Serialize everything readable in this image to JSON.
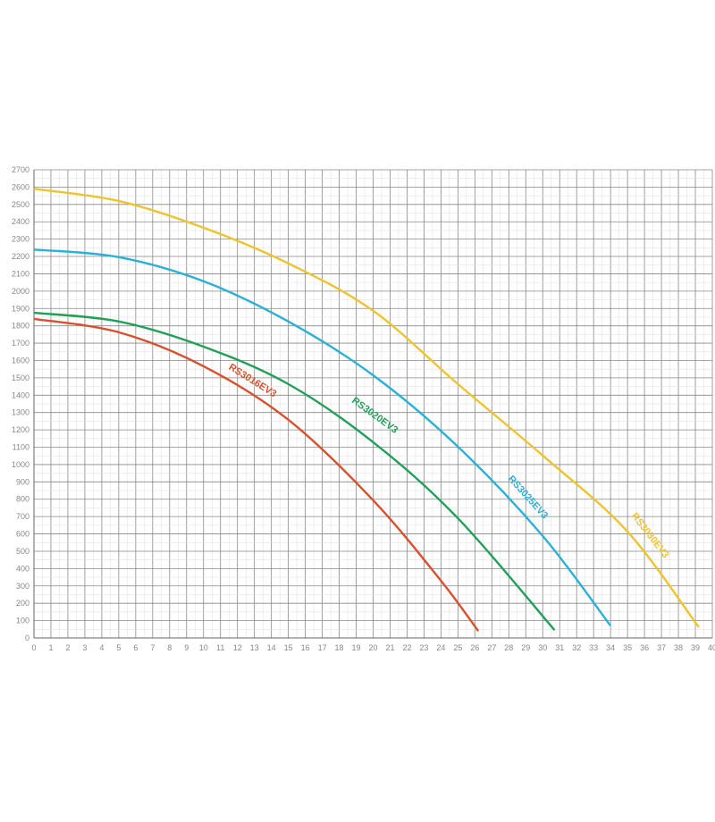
{
  "chart_data": {
    "type": "line",
    "title": "",
    "xlabel": "",
    "ylabel": "",
    "xlim": [
      0,
      40
    ],
    "ylim": [
      0,
      2700
    ],
    "x_ticks": [
      0,
      1,
      2,
      3,
      4,
      5,
      6,
      7,
      8,
      9,
      10,
      11,
      12,
      13,
      14,
      15,
      16,
      17,
      18,
      19,
      20,
      21,
      22,
      23,
      24,
      25,
      26,
      27,
      28,
      29,
      30,
      31,
      32,
      33,
      34,
      35,
      36,
      37,
      38,
      39,
      40
    ],
    "y_ticks": [
      0,
      100,
      200,
      300,
      400,
      500,
      600,
      700,
      800,
      900,
      1000,
      1100,
      1200,
      1300,
      1400,
      1500,
      1600,
      1700,
      1800,
      1900,
      2000,
      2100,
      2200,
      2300,
      2400,
      2500,
      2600,
      2700
    ],
    "grid": true,
    "legend": "inline labels on curves",
    "series": [
      {
        "name": "RS3016EV3",
        "color": "#d9502f",
        "x": [
          0,
          5,
          10,
          15,
          20,
          24,
          26.2
        ],
        "y": [
          1840,
          1763,
          1567,
          1258,
          794,
          330,
          40
        ]
      },
      {
        "name": "RS3020EV3",
        "color": "#22a05a",
        "x": [
          0,
          5,
          10,
          15,
          20,
          25,
          30.7
        ],
        "y": [
          1875,
          1825,
          1680,
          1464,
          1129,
          690,
          45
        ]
      },
      {
        "name": "RS3025EV3",
        "color": "#2bb0d6",
        "x": [
          0,
          5,
          10,
          15,
          20,
          25,
          30,
          34
        ],
        "y": [
          2240,
          2196,
          2057,
          1825,
          1515,
          1103,
          588,
          70
        ]
      },
      {
        "name": "RS3030EV3",
        "color": "#eec42e",
        "x": [
          0,
          5,
          10,
          15,
          20,
          25,
          30,
          35,
          39.2
        ],
        "y": [
          2590,
          2520,
          2366,
          2160,
          1887,
          1464,
          1052,
          613,
          62
        ]
      }
    ]
  }
}
